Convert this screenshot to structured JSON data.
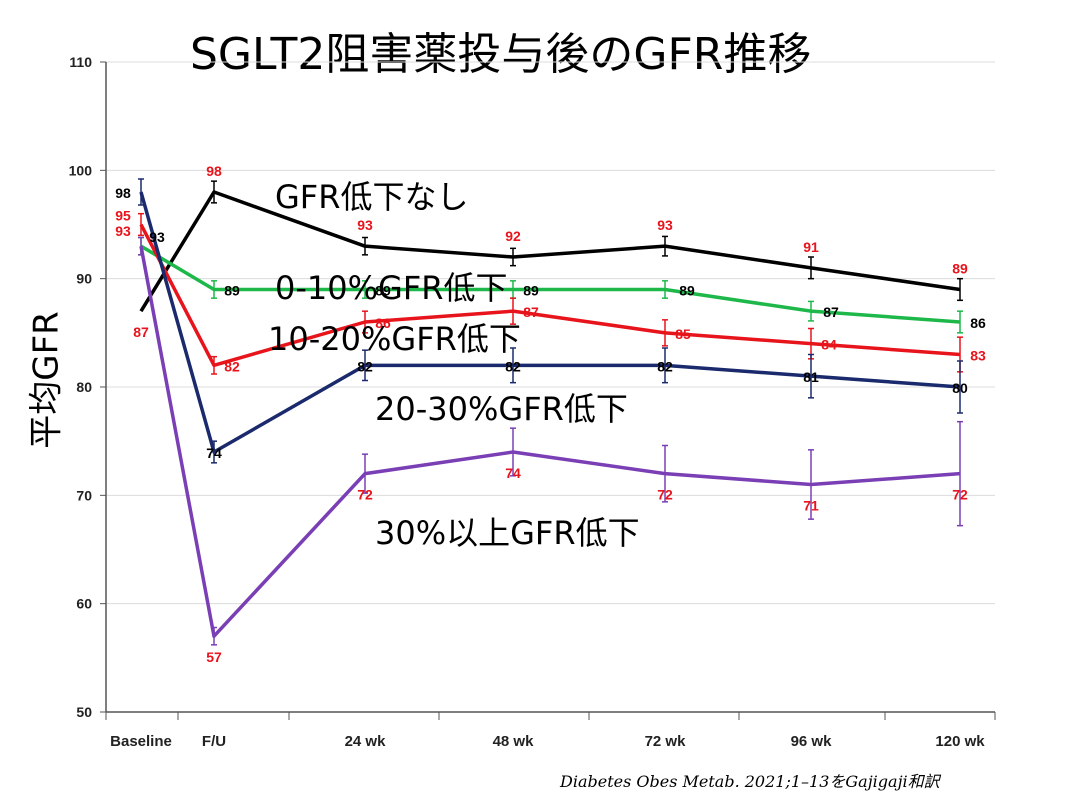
{
  "title": "SGLT2阻害薬投与後のGFR推移",
  "citation": "Diabetes Obes Metab. 2021;1–13をGajigaji和訳",
  "chart_data": {
    "type": "line",
    "title": "SGLT2阻害薬投与後のGFR推移",
    "xlabel": "",
    "ylabel": "平均GFR",
    "ylim": [
      50,
      110
    ],
    "yticks": [
      50,
      60,
      70,
      80,
      90,
      100,
      110
    ],
    "ytick_labels": [
      "50",
      "60",
      "70",
      "80",
      "90",
      "100",
      "110"
    ],
    "grid": true,
    "categories": [
      "Baseline",
      "F/U",
      "24 wk",
      "48 wk",
      "72 wk",
      "96 wk",
      "120 wk"
    ],
    "series": [
      {
        "name": "GFR低下なし",
        "color": "#000000",
        "label_color": "#e8141c",
        "values": [
          87,
          98,
          93,
          92,
          93,
          91,
          89
        ],
        "labels": [
          "87",
          "98",
          "93",
          "92",
          "93",
          "91",
          "89"
        ],
        "errors": [
          null,
          1,
          0.8,
          0.8,
          0.9,
          1,
          1
        ]
      },
      {
        "name": "0-10%GFR低下",
        "color": "#1eb84a",
        "label_color": "#000000",
        "values": [
          93,
          89,
          89,
          89,
          89,
          87,
          86
        ],
        "labels": [
          "93",
          "89",
          "89",
          "89",
          "89",
          "87",
          "86"
        ],
        "errors": [
          0.8,
          0.8,
          0.8,
          0.8,
          0.8,
          0.9,
          1
        ]
      },
      {
        "name": "10-20%GFR低下",
        "color": "#e8141c",
        "label_color": "#e8141c",
        "values": [
          95,
          82,
          86,
          87,
          85,
          84,
          83
        ],
        "labels": [
          "95",
          "82",
          "86",
          "87",
          "85",
          "84",
          "83"
        ],
        "errors": [
          1,
          0.8,
          1,
          1.2,
          1.2,
          1.4,
          1.6
        ]
      },
      {
        "name": "20-30%GFR低下",
        "color": "#1a2a6c",
        "label_color": "#000000",
        "values": [
          98,
          74,
          82,
          82,
          82,
          81,
          80
        ],
        "labels": [
          "98",
          "74",
          "82",
          "82",
          "82",
          "81",
          "80"
        ],
        "errors": [
          1.2,
          1,
          1.4,
          1.6,
          1.6,
          2,
          2.4
        ]
      },
      {
        "name": "30%以上GFR低下",
        "color": "#7a3fb5",
        "label_color": "#e8141c",
        "values": [
          93,
          57,
          72,
          74,
          72,
          71,
          72
        ],
        "labels": [
          "93",
          "57",
          "72",
          "74",
          "72",
          "71",
          "72"
        ],
        "errors": [
          0.8,
          0.8,
          1.8,
          2.2,
          2.6,
          3.2,
          4.8
        ]
      }
    ]
  }
}
